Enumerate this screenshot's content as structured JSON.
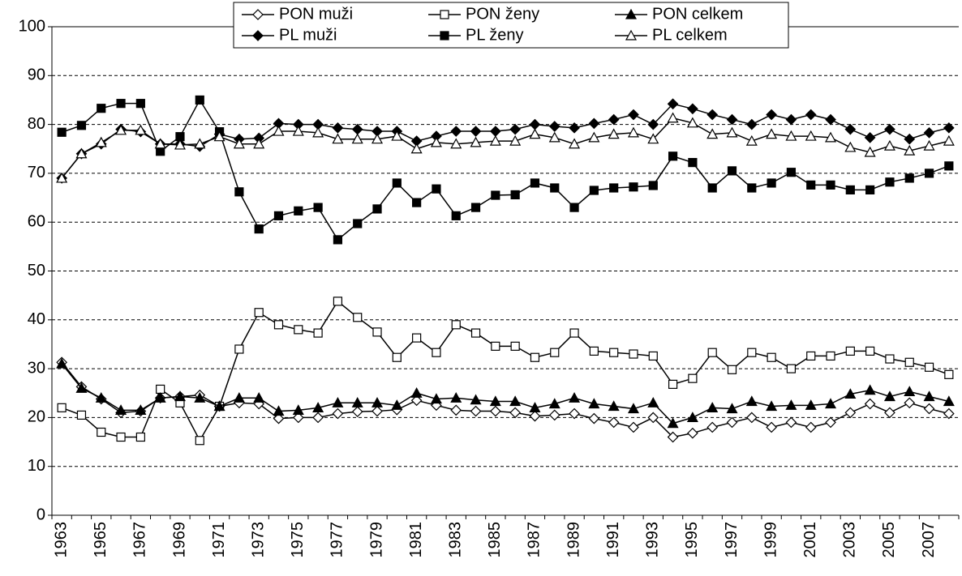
{
  "chart_data": {
    "type": "line",
    "categories": [
      "1963",
      null,
      "1965",
      null,
      "1967",
      null,
      "1969",
      null,
      "1971",
      null,
      "1973",
      null,
      "1975",
      null,
      "1977",
      null,
      "1979",
      null,
      "1981",
      null,
      "1983",
      null,
      "1985",
      null,
      "1987",
      null,
      "1989",
      null,
      "1991",
      null,
      "1993",
      null,
      "1995",
      null,
      "1997",
      null,
      "1999",
      null,
      "2001",
      null,
      "2003",
      null,
      "2005",
      null,
      "2007",
      null
    ],
    "ylim": [
      0,
      100
    ],
    "yticks": [
      0,
      10,
      20,
      30,
      40,
      50,
      60,
      70,
      80,
      90,
      100
    ],
    "grid": true,
    "legend": "top",
    "series": [
      {
        "name": "PON muži",
        "color": "#000000",
        "marker": "diamond",
        "filled": false,
        "values": [
          31.3,
          26.3,
          23.8,
          21,
          21.3,
          24,
          24.3,
          24.6,
          22.3,
          23,
          22.8,
          19.8,
          20,
          20,
          20.8,
          21.2,
          21.3,
          21.6,
          23.5,
          22.5,
          21.5,
          21.3,
          21.3,
          21,
          20.3,
          20.5,
          20.8,
          19.8,
          19,
          18,
          20,
          16,
          16.8,
          18,
          19,
          20,
          18,
          19,
          18,
          19,
          21,
          22.8,
          21,
          23,
          21.8,
          20.8
        ]
      },
      {
        "name": "PON ženy",
        "color": "#000000",
        "marker": "square",
        "filled": false,
        "values": [
          22,
          20.5,
          17,
          16,
          16,
          25.8,
          23,
          15.3,
          22.3,
          34,
          41.5,
          39,
          38,
          37.3,
          43.8,
          40.5,
          37.5,
          32.3,
          36.3,
          33.3,
          39,
          37.3,
          34.6,
          34.6,
          32.3,
          33.3,
          37.3,
          33.6,
          33.3,
          33,
          32.6,
          26.8,
          28,
          33.3,
          29.8,
          33.3,
          32.3,
          30,
          32.6,
          32.6,
          33.6,
          33.6,
          32,
          31.3,
          30.3,
          28.8
        ]
      },
      {
        "name": "PON celkem",
        "color": "#000000",
        "marker": "triangle",
        "filled": true,
        "values": [
          31,
          26,
          24,
          21.5,
          21.5,
          24,
          24.3,
          24,
          22.3,
          24,
          24,
          21.3,
          21.5,
          22,
          23,
          23,
          23,
          22.5,
          25,
          23.8,
          24,
          23.6,
          23.3,
          23.3,
          22,
          22.8,
          24,
          22.8,
          22.3,
          21.8,
          23,
          18.8,
          20,
          22,
          21.8,
          23.3,
          22.3,
          22.5,
          22.5,
          22.8,
          24.8,
          25.6,
          24.3,
          25.3,
          24.3,
          23.3
        ]
      },
      {
        "name": "PL muži",
        "color": "#000000",
        "marker": "diamond",
        "filled": true,
        "values": [
          69,
          74,
          76,
          79,
          78.5,
          76,
          76,
          75.5,
          78,
          77,
          77.2,
          80.2,
          80,
          80,
          79.3,
          79,
          78.6,
          78.6,
          76.6,
          77.6,
          78.6,
          78.6,
          78.6,
          79,
          80,
          79.6,
          79.3,
          80.2,
          81,
          82,
          80,
          84.2,
          83.2,
          82,
          81,
          80,
          82,
          81,
          82,
          81,
          79,
          77.3,
          79,
          77,
          78.3,
          79.3
        ]
      },
      {
        "name": "PL ženy",
        "color": "#000000",
        "marker": "square",
        "filled": true,
        "values": [
          78.4,
          79.8,
          83.3,
          84.3,
          84.3,
          74.5,
          77.5,
          85,
          78.5,
          66.2,
          58.6,
          61.3,
          62.3,
          63,
          56.4,
          59.7,
          62.7,
          68,
          64,
          66.8,
          61.3,
          63,
          65.5,
          65.6,
          68,
          67,
          63,
          66.5,
          67,
          67.2,
          67.5,
          73.5,
          72.2,
          67,
          70.5,
          67,
          68,
          70.2,
          67.6,
          67.6,
          66.6,
          66.6,
          68.2,
          69,
          70,
          71.5
        ]
      },
      {
        "name": "PL celkem",
        "color": "#000000",
        "marker": "triangle",
        "filled": false,
        "values": [
          69,
          74,
          76.3,
          78.8,
          78.8,
          76,
          75.8,
          76,
          77.5,
          76,
          76,
          78.6,
          78.6,
          78.3,
          77,
          77,
          77,
          77.6,
          75,
          76.3,
          76,
          76.3,
          76.6,
          76.6,
          78,
          77.3,
          76,
          77.3,
          78,
          78.3,
          77,
          81.3,
          80.3,
          78,
          78.3,
          76.6,
          78,
          77.6,
          77.6,
          77.3,
          75.3,
          74.3,
          75.6,
          74.6,
          75.6,
          76.6
        ]
      }
    ]
  }
}
